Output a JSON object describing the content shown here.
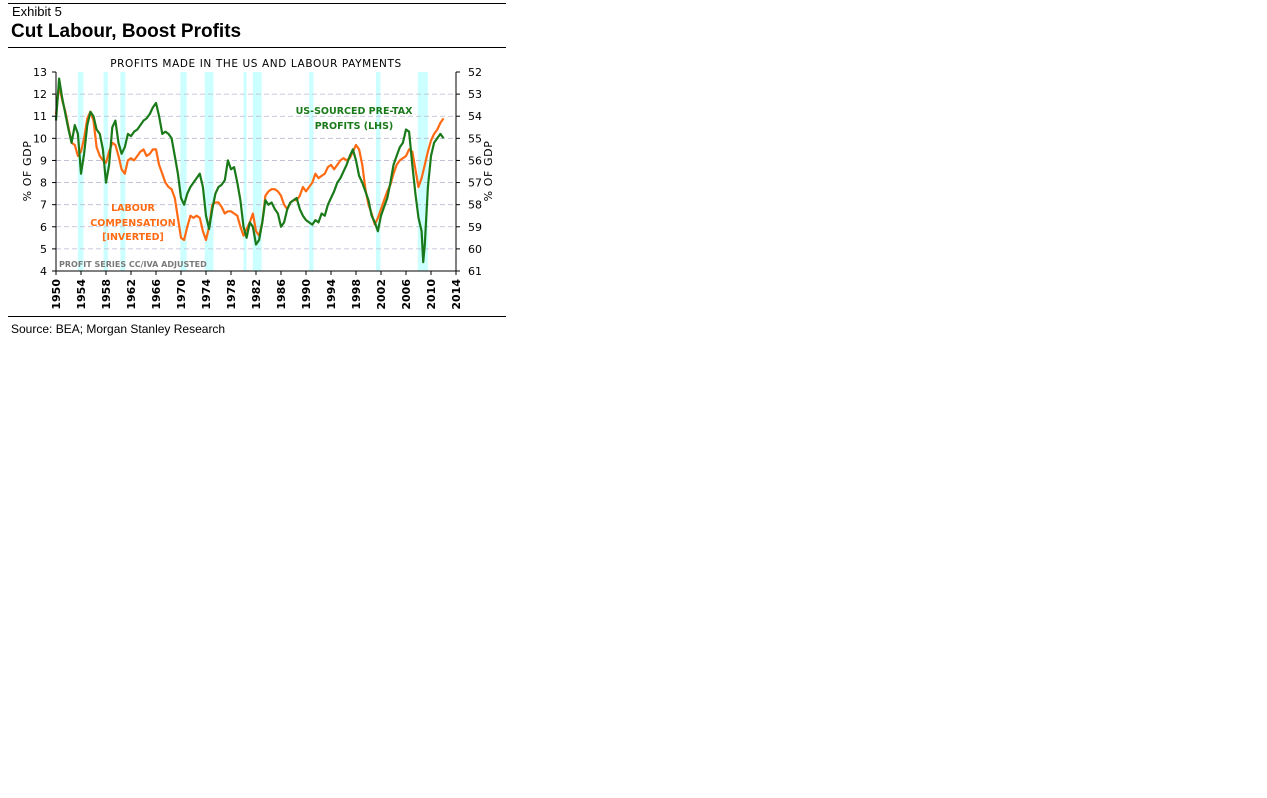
{
  "header": {
    "exhibit": "Exhibit 5",
    "title": "Cut Labour, Boost Profits"
  },
  "footer": {
    "source": "Source: BEA; Morgan Stanley Research"
  },
  "chart_data": {
    "type": "line",
    "title": "PROFITS MADE IN THE US AND LABOUR PAYMENTS",
    "ylabel_left": "% OF GDP",
    "ylabel_right": "% OF GDP",
    "xlim": [
      1950,
      2014
    ],
    "ylim_left": [
      4,
      13
    ],
    "ylim_right": [
      61,
      52
    ],
    "right_axis_inverted": true,
    "x_ticks": [
      "1950",
      "1954",
      "1958",
      "1962",
      "1966",
      "1970",
      "1974",
      "1978",
      "1982",
      "1986",
      "1990",
      "1994",
      "1998",
      "2002",
      "2006",
      "2010",
      "2014"
    ],
    "y_ticks_left": [
      "4",
      "5",
      "6",
      "7",
      "8",
      "9",
      "10",
      "11",
      "12",
      "13"
    ],
    "y_ticks_right": [
      "52",
      "53",
      "54",
      "55",
      "56",
      "57",
      "58",
      "59",
      "60",
      "61"
    ],
    "grid": "horizontal dashed",
    "recession_shading": [
      [
        1953.5,
        1954.4
      ],
      [
        1957.6,
        1958.3
      ],
      [
        1960.3,
        1961.1
      ],
      [
        1969.9,
        1970.9
      ],
      [
        1973.8,
        1975.2
      ],
      [
        1980.0,
        1980.5
      ],
      [
        1981.5,
        1982.9
      ],
      [
        1990.5,
        1991.2
      ],
      [
        2001.2,
        2001.9
      ],
      [
        2007.9,
        2009.5
      ]
    ],
    "annotations": {
      "profits_label": [
        "US-SOURCED PRE-TAX",
        "PROFITS (LHS)"
      ],
      "labour_label": [
        "LABOUR",
        "COMPENSATION",
        "[INVERTED]"
      ],
      "footnote": "PROFIT SERIES CC/IVA ADJUSTED"
    },
    "colors": {
      "profits": "#1a7a1a",
      "labour": "#ff6a13",
      "recession": "#ccffff",
      "grid": "#b8b8d0"
    },
    "series": [
      {
        "name": "US-SOURCED PRE-TAX PROFITS (LHS)",
        "axis": "left",
        "points": [
          [
            1950,
            10.8
          ],
          [
            1950.5,
            12.7
          ],
          [
            1951,
            11.8
          ],
          [
            1951.5,
            11.1
          ],
          [
            1952,
            10.4
          ],
          [
            1952.5,
            9.8
          ],
          [
            1953,
            10.6
          ],
          [
            1953.5,
            10.2
          ],
          [
            1954,
            8.4
          ],
          [
            1954.5,
            9.3
          ],
          [
            1955,
            10.6
          ],
          [
            1955.5,
            11.2
          ],
          [
            1956,
            11.0
          ],
          [
            1956.5,
            10.4
          ],
          [
            1957,
            10.2
          ],
          [
            1957.5,
            9.5
          ],
          [
            1958,
            8.0
          ],
          [
            1958.5,
            8.8
          ],
          [
            1959,
            10.5
          ],
          [
            1959.5,
            10.8
          ],
          [
            1960,
            9.8
          ],
          [
            1960.5,
            9.3
          ],
          [
            1961,
            9.6
          ],
          [
            1961.5,
            10.2
          ],
          [
            1962,
            10.1
          ],
          [
            1962.5,
            10.3
          ],
          [
            1963,
            10.4
          ],
          [
            1963.5,
            10.6
          ],
          [
            1964,
            10.8
          ],
          [
            1964.5,
            10.9
          ],
          [
            1965,
            11.1
          ],
          [
            1965.5,
            11.4
          ],
          [
            1966,
            11.6
          ],
          [
            1966.5,
            11.0
          ],
          [
            1967,
            10.2
          ],
          [
            1967.5,
            10.3
          ],
          [
            1968,
            10.2
          ],
          [
            1968.5,
            10.0
          ],
          [
            1969,
            9.2
          ],
          [
            1969.5,
            8.4
          ],
          [
            1970,
            7.3
          ],
          [
            1970.5,
            7.0
          ],
          [
            1971,
            7.5
          ],
          [
            1971.5,
            7.8
          ],
          [
            1972,
            8.0
          ],
          [
            1972.5,
            8.2
          ],
          [
            1973,
            8.4
          ],
          [
            1973.5,
            7.8
          ],
          [
            1974,
            6.5
          ],
          [
            1974.5,
            5.9
          ],
          [
            1975,
            6.8
          ],
          [
            1975.5,
            7.5
          ],
          [
            1976,
            7.8
          ],
          [
            1976.5,
            7.9
          ],
          [
            1977,
            8.1
          ],
          [
            1977.5,
            9.0
          ],
          [
            1978,
            8.6
          ],
          [
            1978.5,
            8.7
          ],
          [
            1979,
            8.0
          ],
          [
            1979.5,
            7.2
          ],
          [
            1980,
            6.0
          ],
          [
            1980.5,
            5.5
          ],
          [
            1981,
            6.2
          ],
          [
            1981.5,
            6.0
          ],
          [
            1982,
            5.2
          ],
          [
            1982.5,
            5.4
          ],
          [
            1983,
            6.2
          ],
          [
            1983.5,
            7.2
          ],
          [
            1984,
            7.0
          ],
          [
            1984.5,
            7.1
          ],
          [
            1985,
            6.8
          ],
          [
            1985.5,
            6.6
          ],
          [
            1986,
            6.0
          ],
          [
            1986.5,
            6.2
          ],
          [
            1987,
            6.8
          ],
          [
            1987.5,
            7.1
          ],
          [
            1988,
            7.2
          ],
          [
            1988.5,
            7.3
          ],
          [
            1989,
            6.8
          ],
          [
            1989.5,
            6.5
          ],
          [
            1990,
            6.3
          ],
          [
            1990.5,
            6.2
          ],
          [
            1991,
            6.1
          ],
          [
            1991.5,
            6.3
          ],
          [
            1992,
            6.2
          ],
          [
            1992.5,
            6.6
          ],
          [
            1993,
            6.5
          ],
          [
            1993.5,
            7.0
          ],
          [
            1994,
            7.3
          ],
          [
            1994.5,
            7.6
          ],
          [
            1995,
            8.0
          ],
          [
            1995.5,
            8.2
          ],
          [
            1996,
            8.5
          ],
          [
            1996.5,
            8.8
          ],
          [
            1997,
            9.2
          ],
          [
            1997.5,
            9.5
          ],
          [
            1998,
            9.0
          ],
          [
            1998.5,
            8.3
          ],
          [
            1999,
            8.0
          ],
          [
            1999.5,
            7.6
          ],
          [
            2000,
            7.2
          ],
          [
            2000.5,
            6.5
          ],
          [
            2001,
            6.2
          ],
          [
            2001.5,
            5.8
          ],
          [
            2002,
            6.5
          ],
          [
            2002.5,
            6.9
          ],
          [
            2003,
            7.3
          ],
          [
            2003.5,
            8.0
          ],
          [
            2004,
            8.8
          ],
          [
            2004.5,
            9.2
          ],
          [
            2005,
            9.6
          ],
          [
            2005.5,
            9.8
          ],
          [
            2006,
            10.4
          ],
          [
            2006.5,
            10.3
          ],
          [
            2007,
            8.8
          ],
          [
            2007.5,
            7.5
          ],
          [
            2008,
            6.4
          ],
          [
            2008.5,
            5.8
          ],
          [
            2008.75,
            4.4
          ],
          [
            2009,
            5.2
          ],
          [
            2009.5,
            7.8
          ],
          [
            2010,
            9.2
          ],
          [
            2010.5,
            9.8
          ],
          [
            2011,
            10.0
          ],
          [
            2011.5,
            10.2
          ],
          [
            2012,
            10.0
          ]
        ]
      },
      {
        "name": "LABOUR COMPENSATION [INVERTED]",
        "axis": "right",
        "points": [
          [
            1950,
            53.9
          ],
          [
            1950.5,
            52.6
          ],
          [
            1951,
            53.3
          ],
          [
            1951.5,
            53.8
          ],
          [
            1952,
            54.5
          ],
          [
            1952.5,
            55.2
          ],
          [
            1953,
            55.3
          ],
          [
            1953.5,
            55.8
          ],
          [
            1954,
            55.6
          ],
          [
            1954.5,
            55.0
          ],
          [
            1955,
            54.1
          ],
          [
            1955.5,
            53.8
          ],
          [
            1956,
            54.2
          ],
          [
            1956.5,
            55.4
          ],
          [
            1957,
            55.8
          ],
          [
            1957.5,
            56.0
          ],
          [
            1958,
            56.1
          ],
          [
            1958.5,
            55.6
          ],
          [
            1959,
            55.2
          ],
          [
            1959.5,
            55.3
          ],
          [
            1960,
            55.8
          ],
          [
            1960.5,
            56.4
          ],
          [
            1961,
            56.6
          ],
          [
            1961.5,
            56.0
          ],
          [
            1962,
            55.9
          ],
          [
            1962.5,
            56.0
          ],
          [
            1963,
            55.8
          ],
          [
            1963.5,
            55.6
          ],
          [
            1964,
            55.5
          ],
          [
            1964.5,
            55.8
          ],
          [
            1965,
            55.7
          ],
          [
            1965.5,
            55.5
          ],
          [
            1966,
            55.5
          ],
          [
            1966.5,
            56.2
          ],
          [
            1967,
            56.6
          ],
          [
            1967.5,
            57.0
          ],
          [
            1968,
            57.2
          ],
          [
            1968.5,
            57.3
          ],
          [
            1969,
            57.7
          ],
          [
            1969.5,
            58.6
          ],
          [
            1970,
            59.5
          ],
          [
            1970.5,
            59.6
          ],
          [
            1971,
            59.0
          ],
          [
            1971.5,
            58.5
          ],
          [
            1972,
            58.6
          ],
          [
            1972.5,
            58.5
          ],
          [
            1973,
            58.6
          ],
          [
            1973.5,
            59.2
          ],
          [
            1974,
            59.6
          ],
          [
            1974.5,
            59.0
          ],
          [
            1975,
            58.0
          ],
          [
            1975.5,
            57.9
          ],
          [
            1976,
            57.9
          ],
          [
            1976.5,
            58.1
          ],
          [
            1977,
            58.4
          ],
          [
            1977.5,
            58.3
          ],
          [
            1978,
            58.3
          ],
          [
            1978.5,
            58.4
          ],
          [
            1979,
            58.5
          ],
          [
            1979.5,
            59.0
          ],
          [
            1980,
            59.4
          ],
          [
            1980.5,
            59.1
          ],
          [
            1981,
            58.8
          ],
          [
            1981.5,
            58.4
          ],
          [
            1982,
            59.2
          ],
          [
            1982.5,
            59.4
          ],
          [
            1983,
            58.8
          ],
          [
            1983.5,
            57.6
          ],
          [
            1984,
            57.4
          ],
          [
            1984.5,
            57.3
          ],
          [
            1985,
            57.3
          ],
          [
            1985.5,
            57.4
          ],
          [
            1986,
            57.6
          ],
          [
            1986.5,
            58.0
          ],
          [
            1987,
            58.2
          ],
          [
            1987.5,
            57.9
          ],
          [
            1988,
            57.8
          ],
          [
            1988.5,
            57.8
          ],
          [
            1989,
            57.6
          ],
          [
            1989.5,
            57.2
          ],
          [
            1990,
            57.4
          ],
          [
            1990.5,
            57.2
          ],
          [
            1991,
            57.0
          ],
          [
            1991.5,
            56.6
          ],
          [
            1992,
            56.8
          ],
          [
            1992.5,
            56.7
          ],
          [
            1993,
            56.6
          ],
          [
            1993.5,
            56.3
          ],
          [
            1994,
            56.2
          ],
          [
            1994.5,
            56.4
          ],
          [
            1995,
            56.2
          ],
          [
            1995.5,
            56.0
          ],
          [
            1996,
            55.9
          ],
          [
            1996.5,
            56.0
          ],
          [
            1997,
            55.9
          ],
          [
            1997.5,
            55.6
          ],
          [
            1998,
            55.3
          ],
          [
            1998.5,
            55.5
          ],
          [
            1999,
            56.2
          ],
          [
            1999.5,
            57.3
          ],
          [
            2000,
            58.0
          ],
          [
            2000.5,
            58.4
          ],
          [
            2001,
            58.9
          ],
          [
            2001.5,
            58.6
          ],
          [
            2002,
            58.2
          ],
          [
            2002.5,
            57.8
          ],
          [
            2003,
            57.4
          ],
          [
            2003.5,
            57.1
          ],
          [
            2004,
            56.6
          ],
          [
            2004.5,
            56.2
          ],
          [
            2005,
            56.0
          ],
          [
            2005.5,
            55.9
          ],
          [
            2006,
            55.8
          ],
          [
            2006.5,
            55.5
          ],
          [
            2007,
            55.6
          ],
          [
            2007.5,
            56.4
          ],
          [
            2008,
            57.2
          ],
          [
            2008.5,
            56.8
          ],
          [
            2009,
            56.2
          ],
          [
            2009.5,
            55.6
          ],
          [
            2010,
            55.1
          ],
          [
            2010.5,
            54.8
          ],
          [
            2011,
            54.6
          ],
          [
            2011.5,
            54.3
          ],
          [
            2012,
            54.1
          ]
        ]
      }
    ]
  }
}
